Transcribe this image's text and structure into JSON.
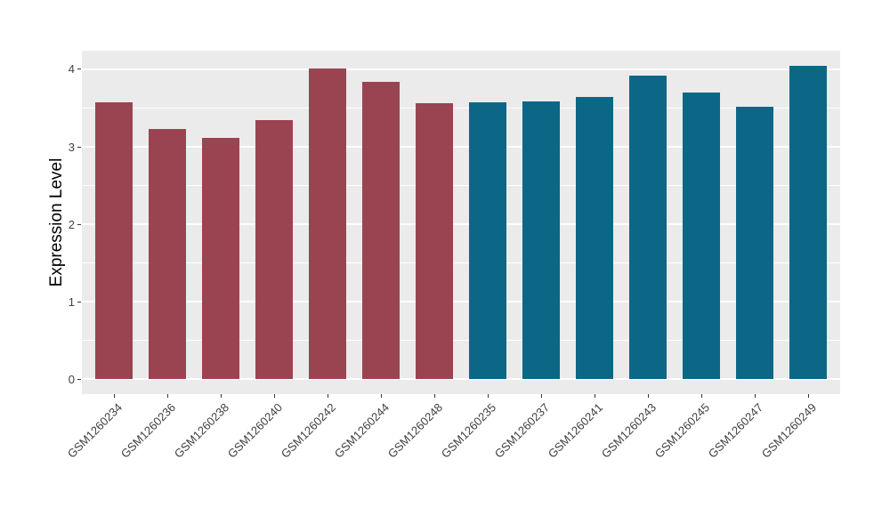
{
  "figure": {
    "background": "#FFFFFF"
  },
  "chart_data": {
    "type": "bar",
    "title": "",
    "xlabel": "",
    "ylabel": "Expression Level",
    "categories": [
      "GSM1260234",
      "GSM1260236",
      "GSM1260238",
      "GSM1260240",
      "GSM1260242",
      "GSM1260244",
      "GSM1260248",
      "GSM1260235",
      "GSM1260237",
      "GSM1260241",
      "GSM1260243",
      "GSM1260245",
      "GSM1260247",
      "GSM1260249"
    ],
    "values": [
      3.57,
      3.23,
      3.12,
      3.34,
      4.01,
      3.84,
      3.56,
      3.57,
      3.59,
      3.64,
      3.92,
      3.7,
      3.52,
      4.05
    ],
    "group_of_bar": [
      0,
      0,
      0,
      0,
      0,
      0,
      0,
      1,
      1,
      1,
      1,
      1,
      1,
      1
    ],
    "group_colors": [
      "#9B4451",
      "#0C6787"
    ],
    "ytick_labels": [
      "0",
      "1",
      "2",
      "3",
      "4"
    ],
    "yticks": [
      0,
      1,
      2,
      3,
      4
    ],
    "minor_yticks": [
      0.5,
      1.5,
      2.5,
      3.5
    ],
    "ylim": [
      -0.19,
      4.24
    ],
    "grid": "on",
    "legend": "none",
    "panel_bg": "#EBEBEB",
    "grid_color": "#FFFFFF",
    "axis_text_color": "#404040",
    "tick_mark_color": "#333333",
    "bar_width_frac": 0.71
  }
}
